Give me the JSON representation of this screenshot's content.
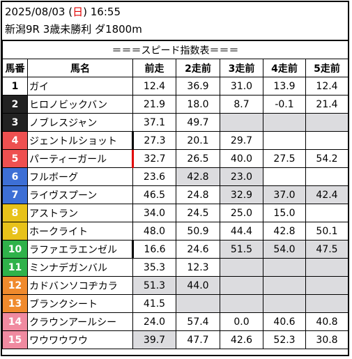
{
  "header": {
    "date": "2025/08/03",
    "day_open": "(",
    "day": "日",
    "day_close": ")",
    "time": "16:55",
    "race": "新潟9R 3歳未勝利 ダ1800m"
  },
  "table": {
    "title": "＝＝＝スピード指数表＝＝＝",
    "columns": [
      "馬番",
      "馬名",
      "前走",
      "2走前",
      "3走前",
      "4走前",
      "5走前"
    ],
    "rows": [
      {
        "num": "1",
        "name": "ガイ",
        "vals": [
          "12.4",
          "36.9",
          "31.0",
          "13.9",
          "12.4"
        ],
        "gray": [
          false,
          false,
          false,
          false,
          false
        ],
        "mark": "",
        "numColor": "#ffffff",
        "numText": "#000000"
      },
      {
        "num": "2",
        "name": "ヒロノビックバン",
        "vals": [
          "21.9",
          "18.0",
          "8.7",
          "-0.1",
          "21.4"
        ],
        "gray": [
          false,
          false,
          false,
          false,
          false
        ],
        "mark": "",
        "numColor": "#222222",
        "numText": "#ffffff"
      },
      {
        "num": "3",
        "name": "ノブレスジャン",
        "vals": [
          "37.1",
          "49.7",
          "",
          "",
          ""
        ],
        "gray": [
          false,
          false,
          true,
          true,
          true
        ],
        "mark": "",
        "numColor": "#222222",
        "numText": "#ffffff"
      },
      {
        "num": "4",
        "name": "ジェントルショット",
        "vals": [
          "27.3",
          "20.1",
          "29.7",
          "",
          ""
        ],
        "gray": [
          false,
          false,
          false,
          false,
          false
        ],
        "mark": "black",
        "numColor": "#ee5050",
        "numText": "#ffffff"
      },
      {
        "num": "5",
        "name": "パーティーガール",
        "vals": [
          "32.7",
          "26.5",
          "40.0",
          "27.5",
          "54.2"
        ],
        "gray": [
          false,
          false,
          false,
          false,
          false
        ],
        "mark": "red",
        "numColor": "#ee5050",
        "numText": "#ffffff"
      },
      {
        "num": "6",
        "name": "フルボーグ",
        "vals": [
          "23.6",
          "42.8",
          "23.0",
          "",
          ""
        ],
        "gray": [
          false,
          true,
          true,
          false,
          false
        ],
        "mark": "",
        "numColor": "#3d6fd6",
        "numText": "#ffffff"
      },
      {
        "num": "7",
        "name": "ライヴスプーン",
        "vals": [
          "46.5",
          "24.8",
          "32.9",
          "37.0",
          "42.4"
        ],
        "gray": [
          false,
          false,
          true,
          true,
          true
        ],
        "mark": "",
        "numColor": "#3d6fd6",
        "numText": "#ffffff"
      },
      {
        "num": "8",
        "name": "アストラン",
        "vals": [
          "34.0",
          "24.5",
          "25.0",
          "15.0",
          ""
        ],
        "gray": [
          false,
          false,
          false,
          false,
          false
        ],
        "mark": "",
        "numColor": "#e8c21a",
        "numText": "#ffffff"
      },
      {
        "num": "9",
        "name": "ホークライト",
        "vals": [
          "48.0",
          "50.9",
          "44.4",
          "42.8",
          "50.1"
        ],
        "gray": [
          false,
          false,
          false,
          false,
          false
        ],
        "mark": "",
        "numColor": "#e8c21a",
        "numText": "#ffffff"
      },
      {
        "num": "10",
        "name": "ラファエラエンゼル",
        "vals": [
          "16.6",
          "24.6",
          "51.5",
          "54.0",
          "47.5"
        ],
        "gray": [
          false,
          false,
          true,
          true,
          true
        ],
        "mark": "black",
        "numColor": "#2fb24a",
        "numText": "#ffffff"
      },
      {
        "num": "11",
        "name": "ミンナデガンバル",
        "vals": [
          "35.3",
          "12.3",
          "",
          "",
          ""
        ],
        "gray": [
          false,
          false,
          true,
          true,
          true
        ],
        "mark": "",
        "numColor": "#2fb24a",
        "numText": "#ffffff"
      },
      {
        "num": "12",
        "name": "カドバンソコヂカラ",
        "vals": [
          "51.3",
          "44.0",
          "",
          "",
          ""
        ],
        "gray": [
          true,
          true,
          true,
          true,
          true
        ],
        "mark": "",
        "numColor": "#f08a2c",
        "numText": "#ffffff"
      },
      {
        "num": "13",
        "name": "ブランクシート",
        "vals": [
          "41.5",
          "",
          "",
          "",
          ""
        ],
        "gray": [
          false,
          true,
          true,
          true,
          true
        ],
        "mark": "",
        "numColor": "#f08a2c",
        "numText": "#ffffff"
      },
      {
        "num": "14",
        "name": "クラウンアールシー",
        "vals": [
          "24.0",
          "57.4",
          "0.0",
          "40.6",
          "40.8"
        ],
        "gray": [
          false,
          false,
          false,
          false,
          false
        ],
        "mark": "",
        "numColor": "#f08aa0",
        "numText": "#ffffff"
      },
      {
        "num": "15",
        "name": "ワウワウワウ",
        "vals": [
          "39.7",
          "47.7",
          "42.6",
          "52.3",
          "30.8"
        ],
        "gray": [
          true,
          false,
          false,
          false,
          false
        ],
        "mark": "",
        "numColor": "#f08aa0",
        "numText": "#ffffff"
      }
    ]
  }
}
